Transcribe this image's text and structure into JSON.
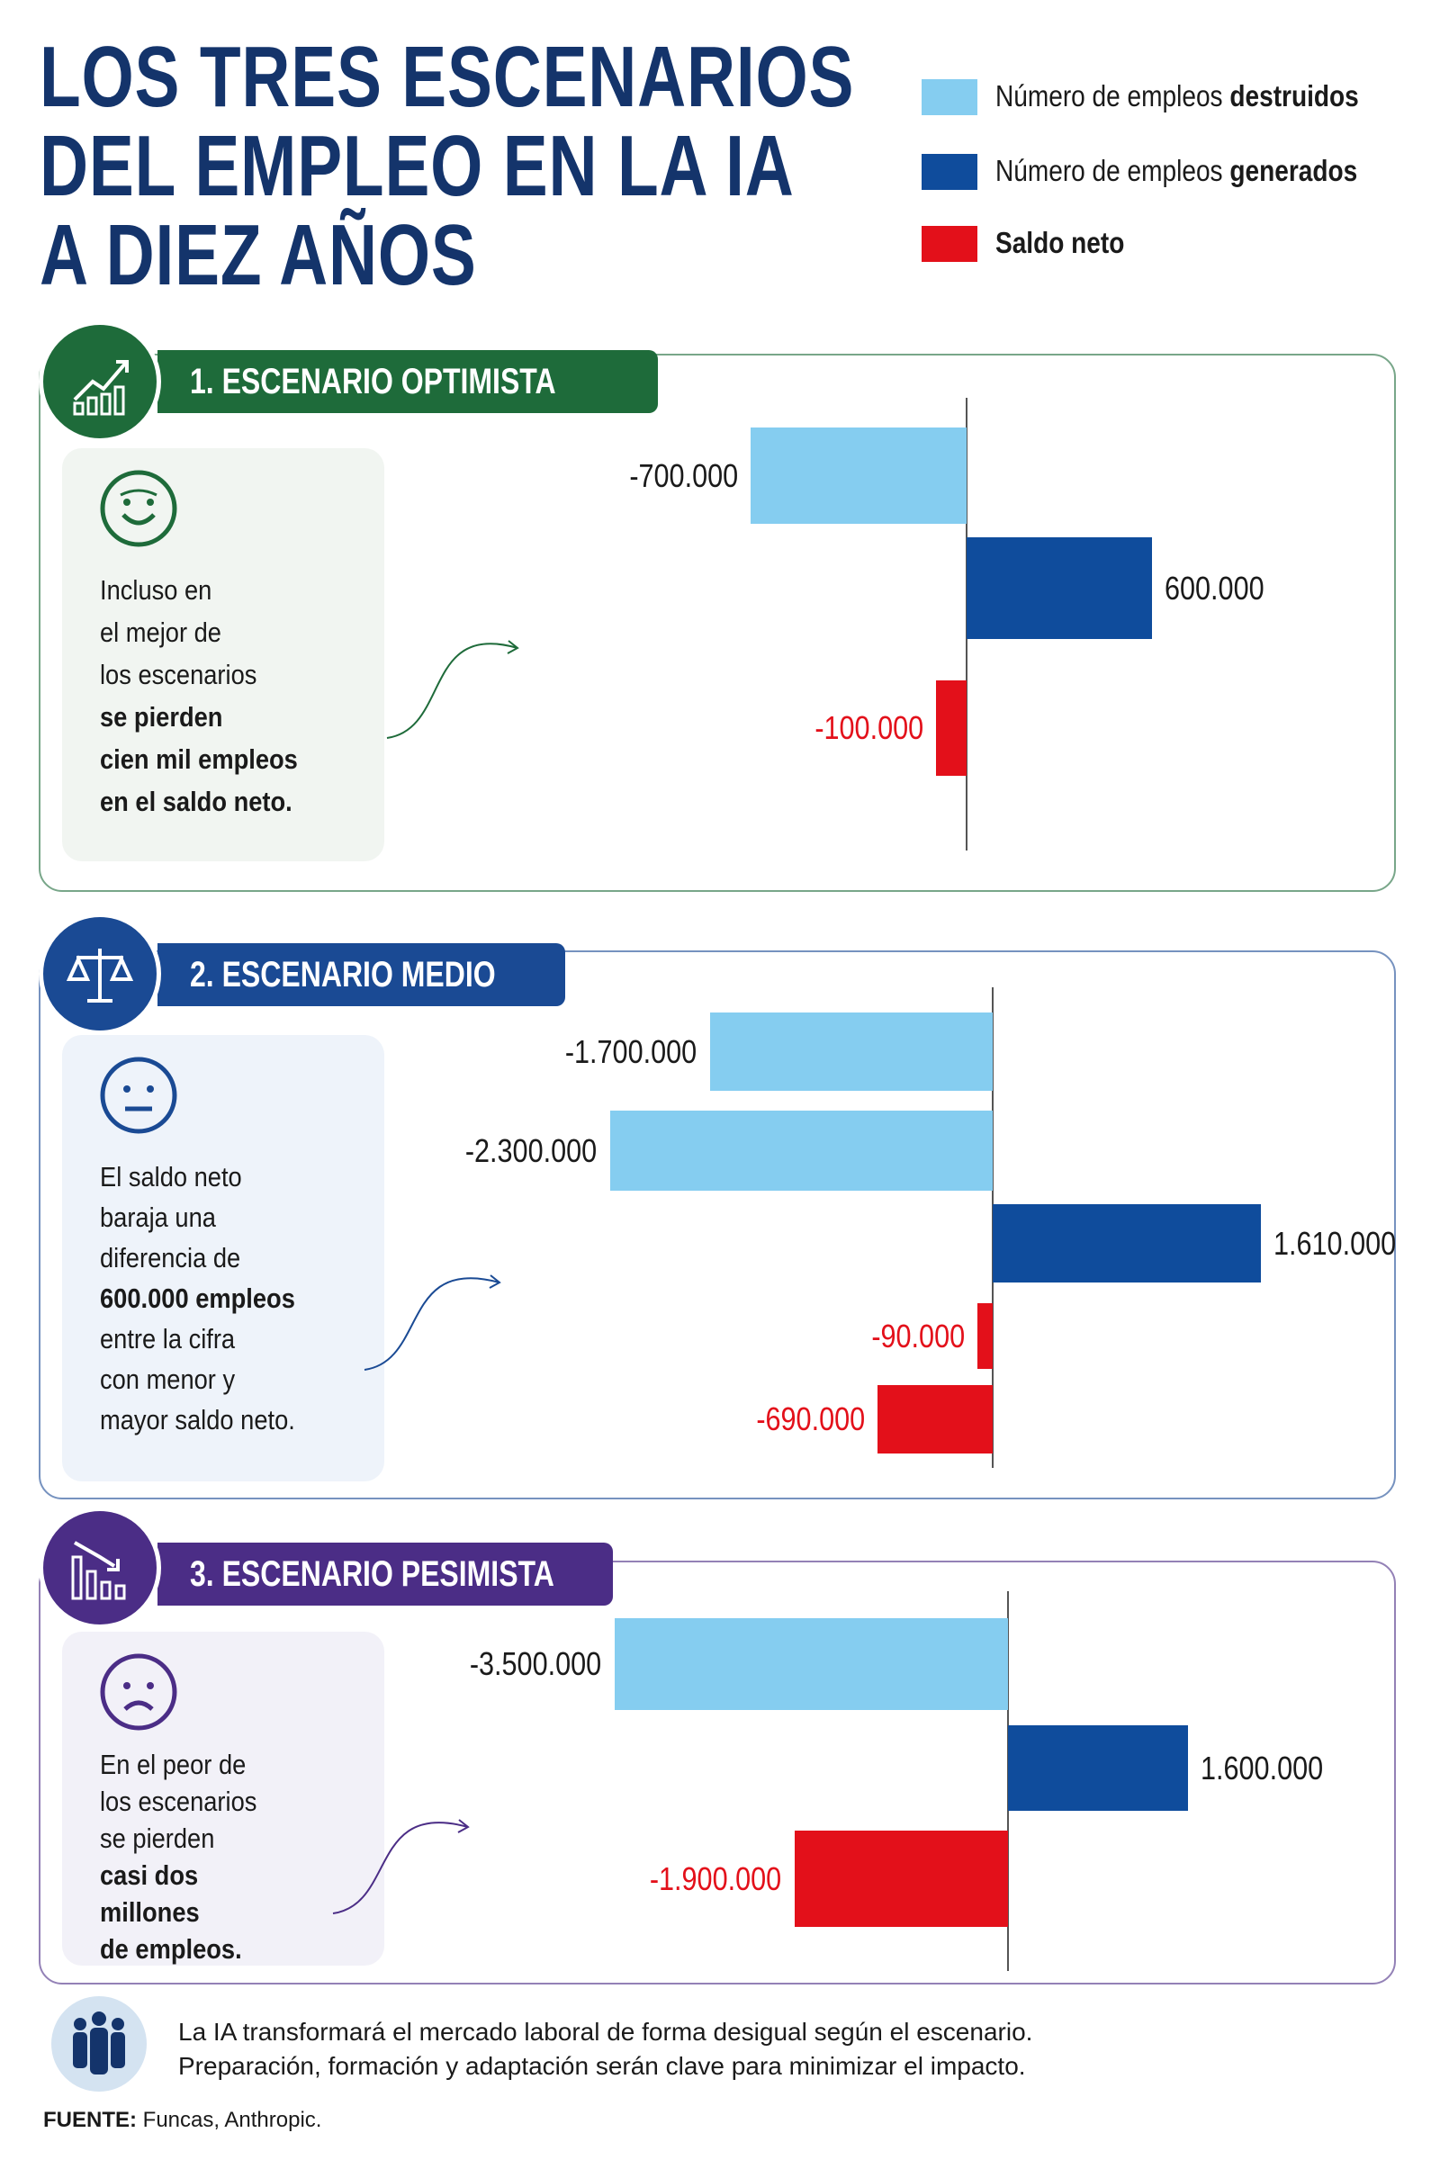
{
  "title": [
    "LOS TRES ESCENARIOS",
    "DEL EMPLEO EN LA IA",
    "A DIEZ AÑOS"
  ],
  "legend": [
    {
      "pre": "Número de empleos ",
      "bold": "destruidos",
      "color": "#85cdf0"
    },
    {
      "pre": "Número de empleos ",
      "bold": "generados",
      "color": "#0f4c9c"
    },
    {
      "pre": "",
      "bold": "Saldo neto",
      "color": "#e3101a"
    }
  ],
  "scenarios": [
    {
      "label": "1. ESCENARIO OPTIMISTA",
      "color": "#1e6b3a",
      "card_bg": "#f1f5f1",
      "icon": "chart-growth-icon",
      "face": "smiling-face-icon",
      "text": [
        {
          "t": "Incluso en",
          "b": false
        },
        {
          "t": "el mejor de",
          "b": false
        },
        {
          "t": "los escenarios",
          "b": false
        },
        {
          "t": "se pierden",
          "b": true
        },
        {
          "t": "cien mil empleos",
          "b": true
        },
        {
          "t": "en el saldo neto.",
          "b": true
        }
      ]
    },
    {
      "label": "2. ESCENARIO MEDIO",
      "color": "#1a4a94",
      "card_bg": "#eef3fa",
      "icon": "balance-scale-icon",
      "face": "neutral-face-icon",
      "text": [
        {
          "t": "El saldo neto",
          "b": false
        },
        {
          "t": "baraja una",
          "b": false
        },
        {
          "t": "diferencia de",
          "b": false
        },
        {
          "t": "600.000 empleos",
          "b": true
        },
        {
          "t": "entre la cifra",
          "b": false
        },
        {
          "t": "con menor y",
          "b": false
        },
        {
          "t": "mayor saldo neto.",
          "b": false
        }
      ]
    },
    {
      "label": "3. ESCENARIO PESIMISTA",
      "color": "#4b2d86",
      "card_bg": "#f2f1f8",
      "icon": "chart-decline-icon",
      "face": "sad-face-icon",
      "text": [
        {
          "t": "En el peor de",
          "b": false
        },
        {
          "t": "los escenarios",
          "b": false
        },
        {
          "t": "se pierden",
          "b": false
        },
        {
          "t": "casi dos",
          "b": true
        },
        {
          "t": "millones",
          "b": true
        },
        {
          "t": "de empleos.",
          "b": true
        }
      ]
    }
  ],
  "chart_data": [
    {
      "type": "bar",
      "orientation": "horizontal",
      "title": "1. ESCENARIO OPTIMISTA",
      "bars": [
        {
          "kind": "destruidos",
          "value": -700000,
          "label": "-700.000"
        },
        {
          "kind": "generados",
          "value": 600000,
          "label": "600.000"
        },
        {
          "kind": "saldo",
          "value": -100000,
          "label": "-100.000"
        }
      ]
    },
    {
      "type": "bar",
      "orientation": "horizontal",
      "title": "2. ESCENARIO MEDIO",
      "bars": [
        {
          "kind": "destruidos",
          "value": -1700000,
          "label": "-1.700.000"
        },
        {
          "kind": "destruidos",
          "value": -2300000,
          "label": "-2.300.000"
        },
        {
          "kind": "generados",
          "value": 1610000,
          "label": "1.610.000"
        },
        {
          "kind": "saldo",
          "value": -90000,
          "label": "-90.000"
        },
        {
          "kind": "saldo",
          "value": -690000,
          "label": "-690.000"
        }
      ]
    },
    {
      "type": "bar",
      "orientation": "horizontal",
      "title": "3. ESCENARIO PESIMISTA",
      "bars": [
        {
          "kind": "destruidos",
          "value": -3500000,
          "label": "-3.500.000"
        },
        {
          "kind": "generados",
          "value": 1600000,
          "label": "1.600.000"
        },
        {
          "kind": "saldo",
          "value": -1900000,
          "label": "-1.900.000"
        }
      ]
    }
  ],
  "colors": {
    "destruidos": "#85cdf0",
    "generados": "#0f4c9c",
    "saldo": "#e3101a",
    "saldo_text": "#e3101a",
    "title": "#14346b"
  },
  "footer": {
    "lines": [
      "La IA transformará el mercado laboral de forma desigual según el escenario.",
      "Preparación, formación y adaptación serán clave para minimizar el impacto."
    ],
    "source_label": "FUENTE:",
    "source": " Funcas, Anthropic.",
    "icon": "people-group-icon"
  }
}
